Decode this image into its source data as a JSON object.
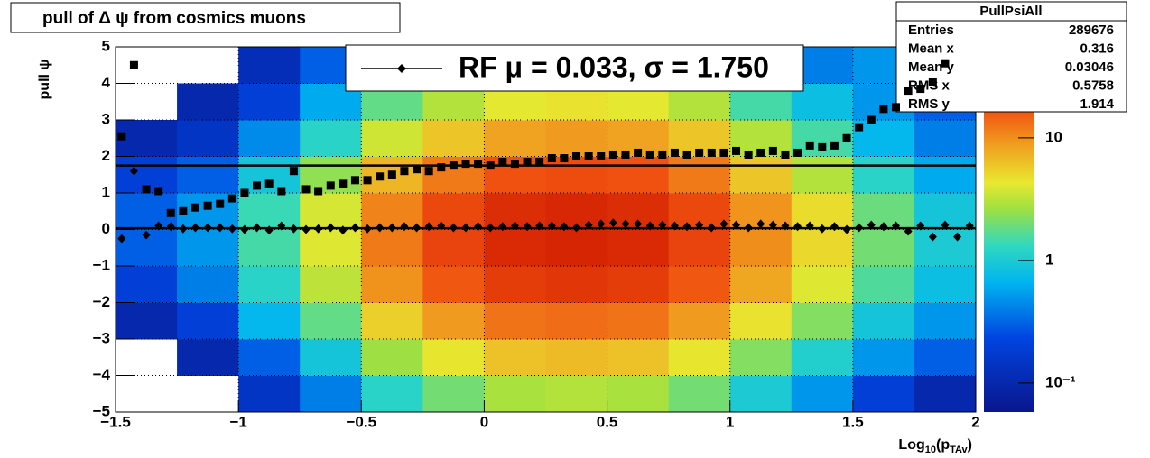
{
  "chart_data": {
    "type": "heatmap_profile",
    "title": "pull of Δ ψ from cosmics muons",
    "ylabel": "pull ψ",
    "xlabel": [
      "Log",
      "10",
      "(p",
      "TAv",
      ")"
    ],
    "xlim": [
      -1.5,
      2
    ],
    "ylim": [
      -5,
      5
    ],
    "xticks": [
      {
        "value": -1.5,
        "label": "−1.5"
      },
      {
        "value": -1,
        "label": "−1"
      },
      {
        "value": -0.5,
        "label": "−0.5"
      },
      0,
      0.5,
      1,
      1.5,
      2
    ],
    "yticks": [
      {
        "value": -5,
        "label": "−5"
      },
      {
        "value": -4,
        "label": "−4"
      },
      {
        "value": -3,
        "label": "−3"
      },
      {
        "value": -2,
        "label": "−2"
      },
      {
        "value": -1,
        "label": "−1"
      },
      0,
      1,
      2,
      3,
      4,
      5
    ],
    "grid": true,
    "zlim": [
      0.058,
      60
    ],
    "zlog": true,
    "zticks": [
      {
        "value": 0.1,
        "label": "10⁻¹"
      },
      1,
      10
    ],
    "xbins": [
      -1.5,
      -1.25,
      -1,
      -0.75,
      -0.5,
      -0.25,
      0,
      0.25,
      0.5,
      0.75,
      1,
      1.25,
      1.5,
      1.75,
      2
    ],
    "ybins": [
      -5,
      -4,
      -3,
      -2,
      -1,
      0,
      1,
      2,
      3,
      4,
      5
    ],
    "z": [
      [
        null,
        null,
        0.15,
        0.4,
        1.2,
        2,
        2.8,
        3,
        2.8,
        2,
        1,
        0.5,
        0.2,
        0.1
      ],
      [
        null,
        0.1,
        0.3,
        0.9,
        2.6,
        4.4,
        6.2,
        6.6,
        6.2,
        4.4,
        2.2,
        1.1,
        0.5,
        0.3
      ],
      [
        0.1,
        0.2,
        0.7,
        1.8,
        5.4,
        9,
        12.6,
        13.5,
        12.6,
        9,
        4.5,
        2.2,
        0.9,
        0.5
      ],
      [
        0.2,
        0.4,
        1.2,
        3.2,
        9.6,
        16,
        22,
        24,
        22,
        16,
        8,
        4,
        1.6,
        0.8
      ],
      [
        0.3,
        0.5,
        1.5,
        4,
        12,
        20,
        28,
        30,
        28,
        20,
        10,
        5,
        2,
        1
      ],
      [
        0.3,
        0.5,
        1.4,
        3.8,
        11,
        19,
        27,
        29,
        27,
        19,
        9.5,
        4.8,
        1.9,
        0.9
      ],
      [
        0.2,
        0.3,
        0.9,
        2.4,
        7,
        12,
        17,
        18,
        17,
        12,
        6,
        3,
        1.2,
        0.6
      ],
      [
        0.1,
        0.15,
        0.45,
        1.2,
        3.6,
        6,
        8.4,
        9,
        8.4,
        6,
        3,
        1.5,
        0.7,
        0.4
      ],
      [
        null,
        0.1,
        0.2,
        0.6,
        1.8,
        3,
        4.2,
        4.5,
        4.2,
        3,
        1.5,
        0.8,
        0.5,
        0.3
      ],
      [
        null,
        null,
        0.12,
        0.3,
        1,
        1.6,
        2.2,
        2.4,
        2.2,
        1.6,
        0.8,
        0.4,
        0.5,
        0.3
      ]
    ],
    "x": [
      -1.475,
      -1.425,
      -1.375,
      -1.325,
      -1.275,
      -1.225,
      -1.175,
      -1.125,
      -1.075,
      -1.025,
      -0.975,
      -0.925,
      -0.875,
      -0.825,
      -0.775,
      -0.725,
      -0.675,
      -0.625,
      -0.575,
      -0.525,
      -0.475,
      -0.425,
      -0.375,
      -0.325,
      -0.275,
      -0.225,
      -0.175,
      -0.125,
      -0.075,
      -0.025,
      0.025,
      0.075,
      0.125,
      0.175,
      0.225,
      0.275,
      0.325,
      0.375,
      0.425,
      0.475,
      0.525,
      0.575,
      0.625,
      0.675,
      0.725,
      0.775,
      0.825,
      0.875,
      0.925,
      0.975,
      1.025,
      1.075,
      1.125,
      1.175,
      1.225,
      1.275,
      1.325,
      1.375,
      1.425,
      1.475,
      1.525,
      1.575,
      1.625,
      1.675,
      1.725,
      1.775,
      1.825,
      1.875,
      1.925,
      1.975
    ],
    "series": [
      {
        "marker": "diamond",
        "color": "#000000",
        "values": [
          -0.25,
          1.6,
          -0.15,
          0.1,
          0.08,
          0.02,
          0.05,
          0.05,
          0.05,
          0.02,
          0.0,
          0.05,
          -0.02,
          0.1,
          0.02,
          0.0,
          0.02,
          0.05,
          -0.02,
          0.05,
          0.02,
          0.05,
          0.05,
          0.08,
          0.05,
          0.08,
          0.1,
          0.05,
          0.05,
          0.08,
          0.05,
          0.08,
          0.1,
          0.08,
          0.1,
          0.1,
          0.08,
          0.05,
          0.12,
          0.15,
          0.18,
          0.15,
          0.15,
          0.1,
          0.12,
          0.1,
          0.08,
          0.12,
          0.05,
          0.15,
          0.12,
          0.05,
          0.15,
          0.12,
          0.1,
          0.08,
          0.1,
          0.02,
          0.08,
          0.0,
          0.05,
          0.12,
          0.08,
          0.1,
          -0.05,
          0.1,
          -0.2,
          0.12,
          -0.2,
          0.1
        ]
      },
      {
        "marker": "square",
        "color": "#000000",
        "values": [
          2.55,
          4.5,
          1.1,
          1.05,
          0.45,
          0.5,
          0.6,
          0.65,
          0.7,
          0.85,
          1.0,
          1.2,
          1.25,
          1.05,
          1.6,
          1.1,
          1.05,
          1.2,
          1.25,
          1.35,
          1.35,
          1.45,
          1.5,
          1.6,
          1.65,
          1.6,
          1.7,
          1.75,
          1.8,
          1.8,
          1.75,
          1.85,
          1.8,
          1.85,
          1.85,
          1.95,
          1.95,
          2.0,
          2.0,
          2.0,
          2.05,
          2.05,
          2.1,
          2.05,
          2.05,
          2.1,
          2.05,
          2.1,
          2.1,
          2.1,
          2.15,
          2.05,
          2.1,
          2.15,
          2.05,
          2.1,
          2.3,
          2.25,
          2.3,
          2.5,
          2.8,
          3.0,
          3.3,
          3.35,
          3.8,
          3.85,
          4.05,
          4.55,
          null,
          null
        ]
      }
    ],
    "fit": {
      "mu": 0.033,
      "sigma": 1.75
    },
    "legend": "RF μ =  0.033, σ =   1.750",
    "stats": {
      "title": "PullPsiAll",
      "rows": [
        [
          "Entries",
          "289676"
        ],
        [
          "Mean x",
          "0.316"
        ],
        [
          "Mean y",
          "0.03046"
        ],
        [
          "RMS x",
          "0.5758"
        ],
        [
          "RMS y",
          "1.914"
        ]
      ]
    }
  }
}
